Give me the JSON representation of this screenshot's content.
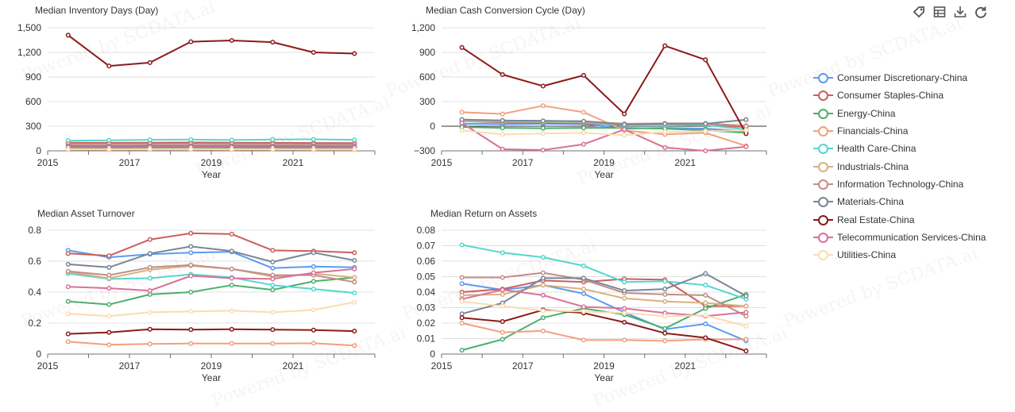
{
  "toolbar": {
    "icons": [
      "tag-icon",
      "table-icon",
      "download-icon",
      "refresh-icon"
    ]
  },
  "watermark": "Powered by SCDATA.ai",
  "legend": [
    {
      "label": "Consumer Discretionary-China",
      "color": "#5B9BF0"
    },
    {
      "label": "Consumer Staples-China",
      "color": "#C9605E"
    },
    {
      "label": "Energy-China",
      "color": "#4DAF6E"
    },
    {
      "label": "Financials-China",
      "color": "#F2A07E"
    },
    {
      "label": "Health Care-China",
      "color": "#55D6CF"
    },
    {
      "label": "Industrials-China",
      "color": "#D9B17F"
    },
    {
      "label": "Information Technology-China",
      "color": "#C08E88"
    },
    {
      "label": "Materials-China",
      "color": "#7A8696"
    },
    {
      "label": "Real Estate-China",
      "color": "#8B1A1A"
    },
    {
      "label": "Telecommunication Services-China",
      "color": "#D8719A"
    },
    {
      "label": "Utilities-China",
      "color": "#FBDCAE"
    }
  ],
  "chart_data": [
    {
      "type": "line",
      "title": "Median Inventory Days (Day)",
      "xlabel": "Year",
      "x": [
        2015,
        2016,
        2017,
        2018,
        2019,
        2020,
        2021,
        2022
      ],
      "x_tick_labels": [
        "2015",
        "2017",
        "2019",
        "2021"
      ],
      "y_ticks": [
        0,
        300,
        600,
        900,
        1200,
        1500
      ],
      "y_tick_labels": [
        "0",
        "300",
        "600",
        "900",
        "1,200",
        "1,500"
      ],
      "ylim": [
        0,
        1500
      ],
      "series": [
        {
          "name": "Consumer Discretionary-China",
          "values": [
            90,
            92,
            95,
            96,
            95,
            94,
            93,
            92
          ]
        },
        {
          "name": "Consumer Staples-China",
          "values": [
            100,
            98,
            100,
            102,
            100,
            98,
            96,
            95
          ]
        },
        {
          "name": "Energy-China",
          "values": [
            35,
            34,
            36,
            35,
            34,
            33,
            34,
            33
          ]
        },
        {
          "name": "Financials-China",
          "values": [
            15,
            14,
            15,
            15,
            14,
            15,
            14,
            14
          ]
        },
        {
          "name": "Health Care-China",
          "values": [
            125,
            128,
            135,
            137,
            132,
            138,
            140,
            135
          ]
        },
        {
          "name": "Industrials-China",
          "values": [
            80,
            78,
            80,
            82,
            80,
            78,
            76,
            75
          ]
        },
        {
          "name": "Information Technology-China",
          "values": [
            85,
            83,
            85,
            86,
            84,
            82,
            80,
            78
          ]
        },
        {
          "name": "Materials-China",
          "values": [
            60,
            58,
            60,
            61,
            60,
            58,
            57,
            56
          ]
        },
        {
          "name": "Real Estate-China",
          "values": [
            1410,
            1035,
            1075,
            1330,
            1345,
            1325,
            1200,
            1185
          ]
        },
        {
          "name": "Telecommunication Services-China",
          "values": [
            45,
            44,
            45,
            46,
            45,
            44,
            43,
            42
          ]
        },
        {
          "name": "Utilities-China",
          "values": [
            20,
            19,
            20,
            20,
            19,
            19,
            18,
            18
          ]
        }
      ]
    },
    {
      "type": "line",
      "title": "Median Cash Conversion Cycle (Day)",
      "xlabel": "Year",
      "x": [
        2015,
        2016,
        2017,
        2018,
        2019,
        2020,
        2021,
        2022
      ],
      "x_tick_labels": [
        "2015",
        "2017",
        "2019",
        "2021"
      ],
      "y_ticks": [
        -300,
        0,
        300,
        600,
        900,
        1200
      ],
      "y_tick_labels": [
        "−300",
        "0",
        "300",
        "600",
        "900",
        "1,200"
      ],
      "ylim": [
        -300,
        1200
      ],
      "series": [
        {
          "name": "Consumer Discretionary-China",
          "values": [
            30,
            25,
            30,
            25,
            -30,
            -20,
            -30,
            -60
          ]
        },
        {
          "name": "Consumer Staples-China",
          "values": [
            60,
            45,
            40,
            35,
            10,
            20,
            10,
            -10
          ]
        },
        {
          "name": "Energy-China",
          "values": [
            -10,
            -20,
            -25,
            -20,
            -20,
            -30,
            -50,
            -80
          ]
        },
        {
          "name": "Financials-China",
          "values": [
            170,
            150,
            250,
            170,
            -50,
            -100,
            -80,
            -240
          ]
        },
        {
          "name": "Health Care-China",
          "values": [
            60,
            55,
            50,
            45,
            10,
            10,
            15,
            -40
          ]
        },
        {
          "name": "Industrials-China",
          "values": [
            70,
            60,
            55,
            50,
            20,
            25,
            30,
            10
          ]
        },
        {
          "name": "Information Technology-China",
          "values": [
            80,
            70,
            65,
            60,
            30,
            35,
            35,
            0
          ]
        },
        {
          "name": "Materials-China",
          "values": [
            80,
            70,
            65,
            60,
            20,
            30,
            30,
            80
          ]
        },
        {
          "name": "Real Estate-China",
          "values": [
            960,
            630,
            490,
            620,
            150,
            980,
            810,
            -90
          ]
        },
        {
          "name": "Telecommunication Services-China",
          "values": [
            40,
            -280,
            -290,
            -220,
            -40,
            -260,
            -300,
            -250
          ]
        },
        {
          "name": "Utilities-China",
          "values": [
            -50,
            -100,
            -90,
            -80,
            -110,
            -70,
            -60,
            -50
          ]
        }
      ]
    },
    {
      "type": "line",
      "title": "Median Asset Turnover",
      "xlabel": "Year",
      "x": [
        2015,
        2016,
        2017,
        2018,
        2019,
        2020,
        2021,
        2022
      ],
      "x_tick_labels": [
        "2015",
        "2017",
        "2019",
        "2021"
      ],
      "y_ticks": [
        0,
        0.2,
        0.4,
        0.6,
        0.8
      ],
      "y_tick_labels": [
        "0",
        "0.2",
        "0.4",
        "0.6",
        "0.8"
      ],
      "ylim": [
        0,
        0.8
      ],
      "series": [
        {
          "name": "Consumer Discretionary-China",
          "values": [
            0.67,
            0.625,
            0.645,
            0.655,
            0.66,
            0.555,
            0.565,
            0.56
          ]
        },
        {
          "name": "Consumer Staples-China",
          "values": [
            0.65,
            0.635,
            0.74,
            0.78,
            0.775,
            0.67,
            0.665,
            0.655
          ]
        },
        {
          "name": "Energy-China",
          "values": [
            0.34,
            0.32,
            0.385,
            0.4,
            0.445,
            0.415,
            0.47,
            0.495
          ]
        },
        {
          "name": "Financials-China",
          "values": [
            0.08,
            0.06,
            0.065,
            0.068,
            0.068,
            0.068,
            0.07,
            0.055
          ]
        },
        {
          "name": "Health Care-China",
          "values": [
            0.52,
            0.485,
            0.49,
            0.515,
            0.495,
            0.445,
            0.42,
            0.395
          ]
        },
        {
          "name": "Industrials-China",
          "values": [
            0.53,
            0.49,
            0.545,
            0.57,
            0.55,
            0.5,
            0.52,
            0.495
          ]
        },
        {
          "name": "Information Technology-China",
          "values": [
            0.535,
            0.51,
            0.56,
            0.575,
            0.55,
            0.51,
            0.51,
            0.465
          ]
        },
        {
          "name": "Materials-China",
          "values": [
            0.58,
            0.56,
            0.65,
            0.695,
            0.665,
            0.595,
            0.655,
            0.605
          ]
        },
        {
          "name": "Real Estate-China",
          "values": [
            0.13,
            0.14,
            0.16,
            0.158,
            0.16,
            0.158,
            0.155,
            0.148
          ]
        },
        {
          "name": "Telecommunication Services-China",
          "values": [
            0.435,
            0.425,
            0.41,
            0.505,
            0.49,
            0.485,
            0.525,
            0.55
          ]
        },
        {
          "name": "Utilities-China",
          "values": [
            0.26,
            0.245,
            0.27,
            0.275,
            0.28,
            0.27,
            0.285,
            0.335
          ]
        }
      ]
    },
    {
      "type": "line",
      "title": "Median Return on Assets",
      "xlabel": "Year",
      "x": [
        2015,
        2016,
        2017,
        2018,
        2019,
        2020,
        2021,
        2022
      ],
      "x_tick_labels": [
        "2015",
        "2017",
        "2019",
        "2021"
      ],
      "y_ticks": [
        0,
        0.01,
        0.02,
        0.03,
        0.04,
        0.05,
        0.06,
        0.07,
        0.08
      ],
      "y_tick_labels": [
        "0",
        "0.01",
        "0.02",
        "0.03",
        "0.04",
        "0.05",
        "0.06",
        "0.07",
        "0.08"
      ],
      "ylim": [
        0,
        0.08
      ],
      "series": [
        {
          "name": "Consumer Discretionary-China",
          "values": [
            0.0455,
            0.0415,
            0.0445,
            0.039,
            0.027,
            0.016,
            0.0195,
            0.0085
          ]
        },
        {
          "name": "Consumer Staples-China",
          "values": [
            0.04,
            0.042,
            0.0475,
            0.0465,
            0.0485,
            0.048,
            0.031,
            0.031
          ]
        },
        {
          "name": "Energy-China",
          "values": [
            0.0025,
            0.0095,
            0.0235,
            0.0295,
            0.0255,
            0.0165,
            0.0295,
            0.0385
          ]
        },
        {
          "name": "Financials-China",
          "values": [
            0.02,
            0.014,
            0.015,
            0.009,
            0.009,
            0.0085,
            0.0095,
            0.0095
          ]
        },
        {
          "name": "Health Care-China",
          "values": [
            0.0705,
            0.0655,
            0.0625,
            0.057,
            0.0465,
            0.047,
            0.0445,
            0.0355
          ]
        },
        {
          "name": "Industrials-China",
          "values": [
            0.038,
            0.0385,
            0.0445,
            0.042,
            0.036,
            0.034,
            0.033,
            0.031
          ]
        },
        {
          "name": "Information Technology-China",
          "values": [
            0.0495,
            0.0495,
            0.0525,
            0.048,
            0.0395,
            0.0385,
            0.038,
            0.0245
          ]
        },
        {
          "name": "Materials-China",
          "values": [
            0.026,
            0.033,
            0.049,
            0.049,
            0.041,
            0.042,
            0.052,
            0.0375
          ]
        },
        {
          "name": "Real Estate-China",
          "values": [
            0.0235,
            0.021,
            0.0285,
            0.0265,
            0.0205,
            0.0135,
            0.0105,
            0.002
          ]
        },
        {
          "name": "Telecommunication Services-China",
          "values": [
            0.0355,
            0.0415,
            0.038,
            0.0305,
            0.0295,
            0.0265,
            0.0245,
            0.027
          ]
        },
        {
          "name": "Utilities-China",
          "values": [
            0.034,
            0.031,
            0.028,
            0.0275,
            0.0265,
            0.0245,
            0.025,
            0.018
          ]
        }
      ]
    }
  ]
}
